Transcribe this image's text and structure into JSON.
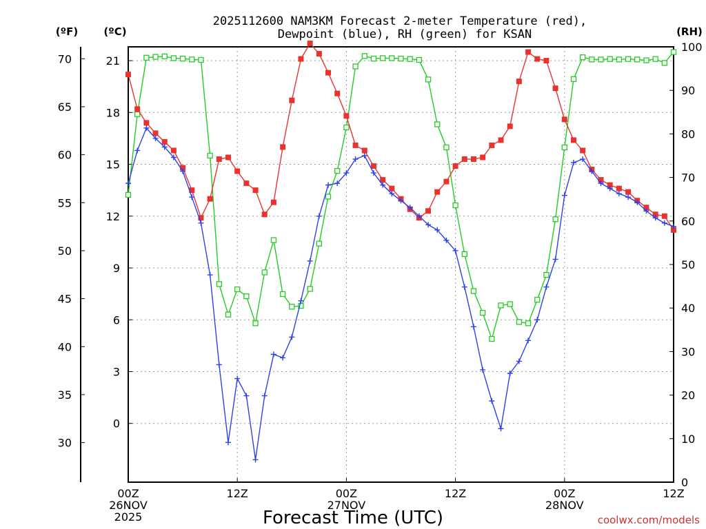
{
  "chart_data": {
    "type": "line",
    "title_line1": "2025112600 NAM3KM Forecast 2-meter Temperature (red),",
    "title_line2": "Dewpoint (blue), RH (green) for KSAN",
    "xlabel": "Forecast Time (UTC)",
    "left_unit_f": "(ºF)",
    "left_unit_c": "(ºC)",
    "right_unit": "(RH)",
    "credit": "coolwx.com/models",
    "x_range_hours": [
      0,
      60
    ],
    "celsius_range": [
      -3.4,
      21.8
    ],
    "rh_range": [
      0,
      100
    ],
    "fahrenheit_ticks": [
      "30",
      "35",
      "40",
      "45",
      "50",
      "55",
      "60",
      "65",
      "70"
    ],
    "celsius_ticks": [
      "0",
      "3",
      "6",
      "9",
      "12",
      "15",
      "18",
      "21"
    ],
    "rh_ticks": [
      "0",
      "10",
      "20",
      "30",
      "40",
      "50",
      "60",
      "70",
      "80",
      "90",
      "100"
    ],
    "x_ticks": [
      {
        "hour": 0,
        "lines": [
          "00Z",
          "26NOV",
          "2025"
        ]
      },
      {
        "hour": 12,
        "lines": [
          "12Z"
        ]
      },
      {
        "hour": 24,
        "lines": [
          "00Z",
          "27NOV"
        ]
      },
      {
        "hour": 36,
        "lines": [
          "12Z"
        ]
      },
      {
        "hour": 48,
        "lines": [
          "00Z",
          "28NOV"
        ]
      },
      {
        "hour": 60,
        "lines": [
          "12Z"
        ]
      }
    ],
    "colors": {
      "temperature": "#e8332e",
      "dewpoint": "#2c40e8",
      "rh": "#22cc22"
    },
    "series": [
      {
        "name": "Temperature",
        "unit": "C",
        "values": [
          20.2,
          18.2,
          17.4,
          16.8,
          16.3,
          15.8,
          14.8,
          13.5,
          11.9,
          13.0,
          15.3,
          15.4,
          14.6,
          13.9,
          13.5,
          12.1,
          12.8,
          16.0,
          18.7,
          21.1,
          22.0,
          21.4,
          20.3,
          19.1,
          17.8,
          16.1,
          15.8,
          14.9,
          14.1,
          13.6,
          13.0,
          12.4,
          11.9,
          12.3,
          13.4,
          14.0,
          14.9,
          15.3,
          15.3,
          15.4,
          16.1,
          16.4,
          17.2,
          19.8,
          21.5,
          21.1,
          21.0,
          19.4,
          17.6,
          16.4,
          15.8,
          14.7,
          14.1,
          13.8,
          13.6,
          13.4,
          12.9,
          12.5,
          12.1,
          12.0,
          11.2
        ]
      },
      {
        "name": "Dewpoint",
        "unit": "C",
        "values": [
          13.9,
          15.8,
          17.1,
          16.5,
          16.0,
          15.4,
          14.6,
          13.1,
          11.6,
          8.6,
          3.4,
          -1.1,
          2.6,
          1.6,
          -2.1,
          1.6,
          4.0,
          3.8,
          5.0,
          7.1,
          9.4,
          12.0,
          13.8,
          13.9,
          14.5,
          15.3,
          15.5,
          14.5,
          13.8,
          13.3,
          12.9,
          12.5,
          12.0,
          11.5,
          11.2,
          10.6,
          10.0,
          7.9,
          5.6,
          3.1,
          1.3,
          -0.3,
          2.9,
          3.6,
          4.8,
          6.0,
          7.9,
          9.5,
          13.2,
          15.1,
          15.3,
          14.6,
          13.9,
          13.6,
          13.3,
          13.1,
          12.8,
          12.3,
          11.9,
          11.6,
          11.4
        ]
      },
      {
        "name": "RH",
        "unit": "%",
        "values": [
          66,
          84.5,
          97.5,
          97.7,
          97.8,
          97.4,
          97.3,
          97.1,
          97.0,
          75,
          45.5,
          38.5,
          44.3,
          42.7,
          36.5,
          48.2,
          55.6,
          43.2,
          40.3,
          40.5,
          44.4,
          54.8,
          65.6,
          71.5,
          81.5,
          95.5,
          97.9,
          97.3,
          97.4,
          97.4,
          97.3,
          97.2,
          97.0,
          92.5,
          82.2,
          76.9,
          63.6,
          52.4,
          43.9,
          38.9,
          32.9,
          40.6,
          40.9,
          36.8,
          36.5,
          41.9,
          47.6,
          60.4,
          76.9,
          92.6,
          97.6,
          97.1,
          97.1,
          97.2,
          97.1,
          97.2,
          97.1,
          96.9,
          97.2,
          96.3,
          98.8
        ]
      }
    ]
  }
}
